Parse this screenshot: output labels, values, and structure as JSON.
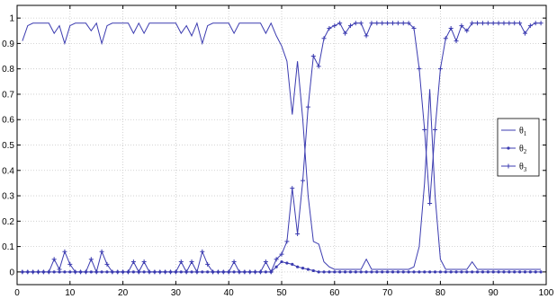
{
  "chart_data": {
    "type": "line",
    "xlim": [
      0,
      100
    ],
    "ylim": [
      -0.05,
      1.05
    ],
    "x_ticks": [
      0,
      10,
      20,
      30,
      40,
      50,
      60,
      70,
      80,
      90,
      100
    ],
    "y_ticks": [
      0,
      0.1,
      0.2,
      0.3,
      0.4,
      0.5,
      0.6,
      0.7,
      0.8,
      0.9,
      1
    ],
    "x_tick_labels": [
      "0",
      "10",
      "20",
      "30",
      "40",
      "50",
      "60",
      "70",
      "80",
      "90",
      "100"
    ],
    "y_tick_labels": [
      "0",
      "0.1",
      "0.2",
      "0.3",
      "0.4",
      "0.5",
      "0.6",
      "0.7",
      "0.8",
      "0.9",
      "1"
    ],
    "grid": true,
    "legend_position": "right",
    "line_color": "#3b3bb0",
    "x": [
      1,
      2,
      3,
      4,
      5,
      6,
      7,
      8,
      9,
      10,
      11,
      12,
      13,
      14,
      15,
      16,
      17,
      18,
      19,
      20,
      21,
      22,
      23,
      24,
      25,
      26,
      27,
      28,
      29,
      30,
      31,
      32,
      33,
      34,
      35,
      36,
      37,
      38,
      39,
      40,
      41,
      42,
      43,
      44,
      45,
      46,
      47,
      48,
      49,
      50,
      51,
      52,
      53,
      54,
      55,
      56,
      57,
      58,
      59,
      60,
      61,
      62,
      63,
      64,
      65,
      66,
      67,
      68,
      69,
      70,
      71,
      72,
      73,
      74,
      75,
      76,
      77,
      78,
      79,
      80,
      81,
      82,
      83,
      84,
      85,
      86,
      87,
      88,
      89,
      90,
      91,
      92,
      93,
      94,
      95,
      96,
      97,
      98,
      99
    ],
    "series": [
      {
        "name": "θ",
        "subscript": "1",
        "marker": "none",
        "values": [
          0.91,
          0.97,
          0.98,
          0.98,
          0.98,
          0.98,
          0.94,
          0.97,
          0.9,
          0.97,
          0.98,
          0.98,
          0.98,
          0.95,
          0.98,
          0.9,
          0.97,
          0.98,
          0.98,
          0.98,
          0.98,
          0.94,
          0.98,
          0.94,
          0.98,
          0.98,
          0.98,
          0.98,
          0.98,
          0.98,
          0.94,
          0.97,
          0.93,
          0.98,
          0.9,
          0.97,
          0.98,
          0.98,
          0.98,
          0.98,
          0.94,
          0.98,
          0.98,
          0.98,
          0.98,
          0.98,
          0.94,
          0.98,
          0.93,
          0.89,
          0.83,
          0.62,
          0.83,
          0.6,
          0.3,
          0.12,
          0.11,
          0.04,
          0.02,
          0.01,
          0.01,
          0.01,
          0.01,
          0.01,
          0.01,
          0.05,
          0.01,
          0.01,
          0.01,
          0.01,
          0.01,
          0.01,
          0.01,
          0.01,
          0.02,
          0.1,
          0.35,
          0.72,
          0.3,
          0.05,
          0.01,
          0.01,
          0.01,
          0.01,
          0.01,
          0.04,
          0.01,
          0.01,
          0.01,
          0.01,
          0.01,
          0.01,
          0.01,
          0.01,
          0.01,
          0.01,
          0.01,
          0.01,
          0.01
        ]
      },
      {
        "name": "θ",
        "subscript": "2",
        "marker": "dot",
        "values": [
          0,
          0,
          0,
          0,
          0,
          0,
          0,
          0,
          0,
          0,
          0,
          0,
          0,
          0,
          0,
          0,
          0,
          0,
          0,
          0,
          0,
          0,
          0,
          0,
          0,
          0,
          0,
          0,
          0,
          0,
          0,
          0,
          0,
          0,
          0,
          0,
          0,
          0,
          0,
          0,
          0,
          0,
          0,
          0,
          0,
          0,
          0,
          0,
          0.02,
          0.04,
          0.035,
          0.03,
          0.02,
          0.015,
          0.01,
          0.005,
          0,
          0,
          0,
          0,
          0,
          0,
          0,
          0,
          0,
          0,
          0,
          0,
          0,
          0,
          0,
          0,
          0,
          0,
          0,
          0,
          0,
          0,
          0,
          0,
          0,
          0,
          0,
          0,
          0,
          0,
          0,
          0,
          0,
          0,
          0,
          0,
          0,
          0,
          0,
          0,
          0,
          0,
          0
        ]
      },
      {
        "name": "θ",
        "subscript": "3",
        "marker": "plus",
        "values": [
          0,
          0,
          0,
          0,
          0,
          0,
          0.05,
          0.01,
          0.08,
          0.03,
          0,
          0,
          0,
          0.05,
          0,
          0.08,
          0.03,
          0,
          0,
          0,
          0,
          0.04,
          0,
          0.04,
          0,
          0,
          0,
          0,
          0,
          0,
          0.04,
          0,
          0.04,
          0,
          0.08,
          0.03,
          0,
          0,
          0,
          0,
          0.04,
          0,
          0,
          0,
          0,
          0,
          0.04,
          0,
          0.05,
          0.07,
          0.12,
          0.33,
          0.15,
          0.36,
          0.65,
          0.85,
          0.81,
          0.92,
          0.96,
          0.97,
          0.98,
          0.94,
          0.97,
          0.98,
          0.98,
          0.93,
          0.98,
          0.98,
          0.98,
          0.98,
          0.98,
          0.98,
          0.98,
          0.98,
          0.96,
          0.8,
          0.56,
          0.27,
          0.56,
          0.8,
          0.92,
          0.96,
          0.91,
          0.97,
          0.95,
          0.98,
          0.98,
          0.98,
          0.98,
          0.98,
          0.98,
          0.98,
          0.98,
          0.98,
          0.98,
          0.94,
          0.97,
          0.98,
          0.98
        ]
      }
    ]
  }
}
